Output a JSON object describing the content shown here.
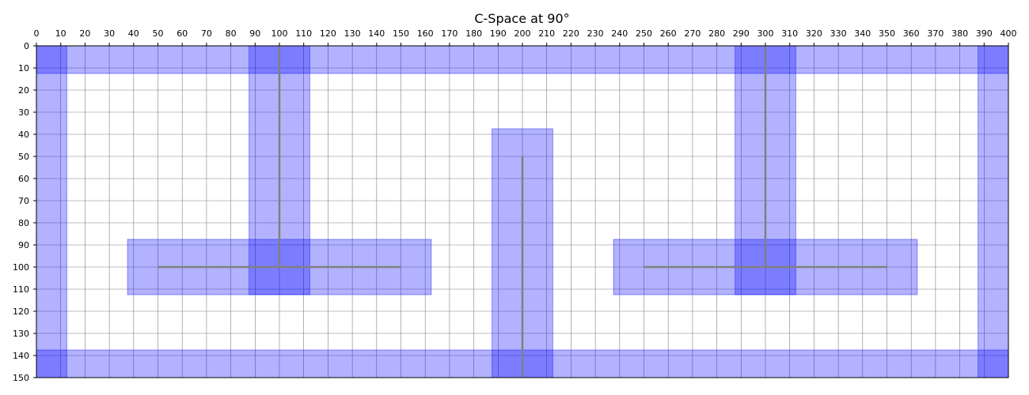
{
  "figure": {
    "title": "C-Space at 90°"
  },
  "chart_data": {
    "type": "configuration-space",
    "title": "C-Space at 90°",
    "xlim": [
      0,
      400
    ],
    "ylim": [
      0,
      150
    ],
    "y_axis_inverted": true,
    "x_ticks_position": "top",
    "x_ticks": [
      0,
      10,
      20,
      30,
      40,
      50,
      60,
      70,
      80,
      90,
      100,
      110,
      120,
      130,
      140,
      150,
      160,
      170,
      180,
      190,
      200,
      210,
      220,
      230,
      240,
      250,
      260,
      270,
      280,
      290,
      300,
      310,
      320,
      330,
      340,
      350,
      360,
      370,
      380,
      390,
      400
    ],
    "y_ticks": [
      0,
      10,
      20,
      30,
      40,
      50,
      60,
      70,
      80,
      90,
      100,
      110,
      120,
      130,
      140,
      150
    ],
    "grid": true,
    "grid_step": 10,
    "colors": {
      "obstacle_fill": "#0000ff",
      "obstacle_stroke": "#0000ff",
      "segment": "#808080",
      "grid": "#808080"
    },
    "cspace_obstacles": [
      {
        "x": 0,
        "y": 0,
        "w": 12.5,
        "h": 150
      },
      {
        "x": 387.5,
        "y": 0,
        "w": 12.5,
        "h": 150
      },
      {
        "x": 0,
        "y": 0,
        "w": 400,
        "h": 12.5
      },
      {
        "x": 0,
        "y": 137.5,
        "w": 400,
        "h": 12.5
      },
      {
        "x": 87.5,
        "y": 0,
        "w": 25,
        "h": 112.5
      },
      {
        "x": 37.5,
        "y": 87.5,
        "w": 125,
        "h": 25
      },
      {
        "x": 187.5,
        "y": 37.5,
        "w": 25,
        "h": 112.5
      },
      {
        "x": 287.5,
        "y": 0,
        "w": 25,
        "h": 112.5
      },
      {
        "x": 237.5,
        "y": 87.5,
        "w": 125,
        "h": 25
      }
    ],
    "obstacle_segments": [
      {
        "x1": 100,
        "y1": 0,
        "x2": 100,
        "y2": 100
      },
      {
        "x1": 50,
        "y1": 100,
        "x2": 150,
        "y2": 100
      },
      {
        "x1": 200,
        "y1": 50,
        "x2": 200,
        "y2": 150
      },
      {
        "x1": 300,
        "y1": 0,
        "x2": 300,
        "y2": 100
      },
      {
        "x1": 250,
        "y1": 100,
        "x2": 350,
        "y2": 100
      }
    ]
  }
}
